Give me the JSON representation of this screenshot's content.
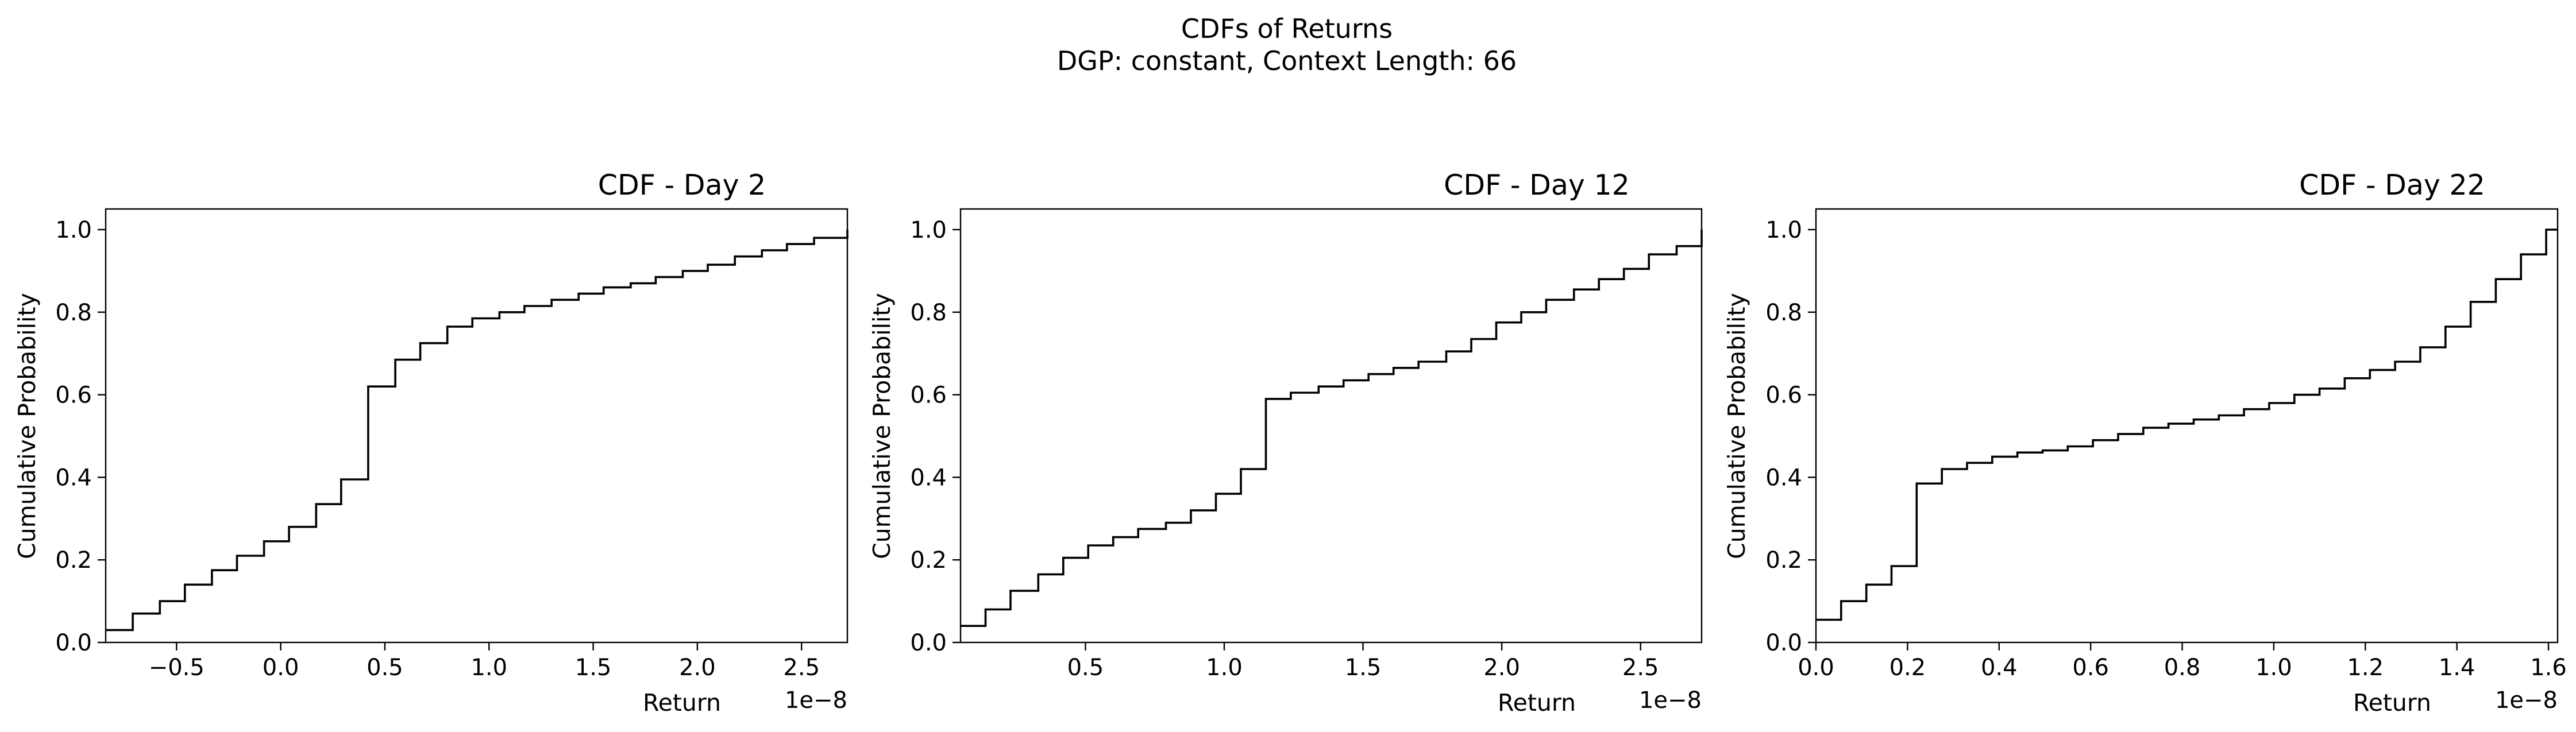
{
  "figure": {
    "title_line1": "CDFs of Returns",
    "title_line2": "DGP: constant, Context Length: 66"
  },
  "chart_data": [
    {
      "type": "line",
      "step": true,
      "title": "CDF - Day 2",
      "xlabel": "Return",
      "ylabel": "Cumulative Probability",
      "x_offset_label": "1e−8",
      "xlim": [
        -0.84,
        2.72
      ],
      "ylim": [
        0.0,
        1.05
      ],
      "xticks": [
        -0.5,
        0.0,
        0.5,
        1.0,
        1.5,
        2.0,
        2.5
      ],
      "xtick_labels": [
        "−0.5",
        "0.0",
        "0.5",
        "1.0",
        "1.5",
        "2.0",
        "2.5"
      ],
      "yticks": [
        0.0,
        0.2,
        0.4,
        0.6,
        0.8,
        1.0
      ],
      "ytick_labels": [
        "0.0",
        "0.2",
        "0.4",
        "0.6",
        "0.8",
        "1.0"
      ],
      "grid": false,
      "x": [
        -0.84,
        -0.71,
        -0.58,
        -0.46,
        -0.33,
        -0.21,
        -0.08,
        0.04,
        0.17,
        0.29,
        0.42,
        0.55,
        0.67,
        0.8,
        0.92,
        1.05,
        1.17,
        1.3,
        1.43,
        1.55,
        1.68,
        1.8,
        1.93,
        2.05,
        2.18,
        2.31,
        2.43,
        2.56,
        2.72
      ],
      "y": [
        0.03,
        0.07,
        0.1,
        0.14,
        0.175,
        0.21,
        0.245,
        0.28,
        0.335,
        0.395,
        0.62,
        0.685,
        0.725,
        0.765,
        0.785,
        0.8,
        0.815,
        0.83,
        0.845,
        0.86,
        0.87,
        0.885,
        0.9,
        0.915,
        0.935,
        0.95,
        0.965,
        0.98,
        1.0
      ]
    },
    {
      "type": "line",
      "step": true,
      "title": "CDF - Day 12",
      "xlabel": "Return",
      "ylabel": "Cumulative Probability",
      "x_offset_label": "1e−8",
      "xlim": [
        0.05,
        2.72
      ],
      "ylim": [
        0.0,
        1.05
      ],
      "xticks": [
        0.5,
        1.0,
        1.5,
        2.0,
        2.5
      ],
      "xtick_labels": [
        "0.5",
        "1.0",
        "1.5",
        "2.0",
        "2.5"
      ],
      "yticks": [
        0.0,
        0.2,
        0.4,
        0.6,
        0.8,
        1.0
      ],
      "ytick_labels": [
        "0.0",
        "0.2",
        "0.4",
        "0.6",
        "0.8",
        "1.0"
      ],
      "grid": false,
      "x": [
        0.05,
        0.14,
        0.23,
        0.33,
        0.42,
        0.51,
        0.6,
        0.69,
        0.79,
        0.88,
        0.97,
        1.06,
        1.15,
        1.24,
        1.34,
        1.43,
        1.52,
        1.61,
        1.7,
        1.8,
        1.89,
        1.98,
        2.07,
        2.16,
        2.26,
        2.35,
        2.44,
        2.53,
        2.63,
        2.72
      ],
      "y": [
        0.04,
        0.08,
        0.125,
        0.165,
        0.205,
        0.235,
        0.255,
        0.275,
        0.29,
        0.32,
        0.36,
        0.42,
        0.59,
        0.605,
        0.62,
        0.635,
        0.65,
        0.665,
        0.68,
        0.705,
        0.735,
        0.775,
        0.8,
        0.83,
        0.855,
        0.88,
        0.905,
        0.94,
        0.96,
        1.0
      ]
    },
    {
      "type": "line",
      "step": true,
      "title": "CDF - Day 22",
      "xlabel": "Return",
      "ylabel": "Cumulative Probability",
      "x_offset_label": "1e−8",
      "xlim": [
        0.0,
        1.62
      ],
      "ylim": [
        0.0,
        1.05
      ],
      "xticks": [
        0.0,
        0.2,
        0.4,
        0.6,
        0.8,
        1.0,
        1.2,
        1.4,
        1.6
      ],
      "xtick_labels": [
        "0.0",
        "0.2",
        "0.4",
        "0.6",
        "0.8",
        "1.0",
        "1.2",
        "1.4",
        "1.6"
      ],
      "yticks": [
        0.0,
        0.2,
        0.4,
        0.6,
        0.8,
        1.0
      ],
      "ytick_labels": [
        "0.0",
        "0.2",
        "0.4",
        "0.6",
        "0.8",
        "1.0"
      ],
      "grid": false,
      "x": [
        0.0,
        0.055,
        0.11,
        0.165,
        0.22,
        0.275,
        0.33,
        0.385,
        0.44,
        0.495,
        0.55,
        0.605,
        0.66,
        0.715,
        0.77,
        0.825,
        0.88,
        0.935,
        0.99,
        1.045,
        1.1,
        1.155,
        1.21,
        1.265,
        1.32,
        1.375,
        1.43,
        1.485,
        1.54,
        1.595,
        1.62
      ],
      "y": [
        0.055,
        0.1,
        0.14,
        0.185,
        0.385,
        0.42,
        0.435,
        0.45,
        0.46,
        0.465,
        0.475,
        0.49,
        0.505,
        0.52,
        0.53,
        0.54,
        0.55,
        0.565,
        0.58,
        0.6,
        0.615,
        0.64,
        0.66,
        0.68,
        0.715,
        0.765,
        0.825,
        0.88,
        0.94,
        1.0,
        1.0
      ]
    }
  ]
}
